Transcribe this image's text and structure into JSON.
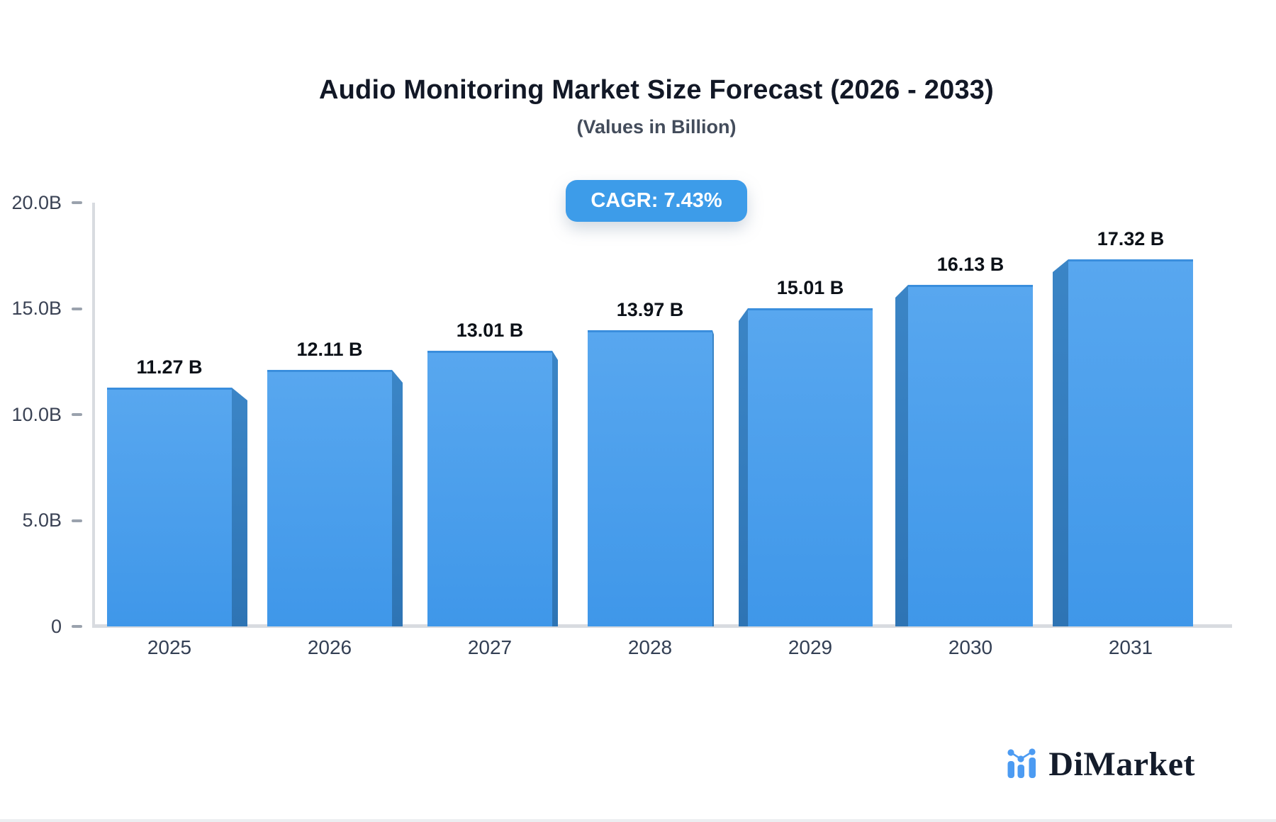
{
  "chart_data": {
    "type": "bar",
    "title": "Audio Monitoring Market Size Forecast (2026 - 2033)",
    "subtitle": "(Values in Billion)",
    "cagr_label": "CAGR: 7.43%",
    "categories": [
      "2025",
      "2026",
      "2027",
      "2028",
      "2029",
      "2030",
      "2031"
    ],
    "values": [
      11.27,
      12.11,
      13.01,
      13.97,
      15.01,
      16.13,
      17.32
    ],
    "value_labels": [
      "11.27 B",
      "12.11 B",
      "13.01 B",
      "13.97 B",
      "15.01 B",
      "16.13 B",
      "17.32 B"
    ],
    "unit": "Billion",
    "ylim": [
      0,
      20
    ],
    "ytick_values": [
      20,
      15,
      10,
      5,
      0
    ],
    "ytick_labels": [
      "20.0B",
      "15.0B",
      "10.0B",
      "5.0B",
      "0"
    ],
    "grid": false,
    "legend": "none",
    "bar_style": "3d-perspective"
  },
  "colors": {
    "bar_face_top": "#58a7ef",
    "bar_face_bottom": "#3f97e9",
    "bar_side": "#2e74b4",
    "badge_background": "#3d9ce9",
    "badge_text": "#ffffff",
    "axis_line": "#d8dbe0",
    "logo_blue": "#4c9bf2",
    "logo_dark": "#141c2b"
  },
  "branding": {
    "logo_text": "DiMarket",
    "logo_icon": "mini-bar-line-chart-icon"
  }
}
